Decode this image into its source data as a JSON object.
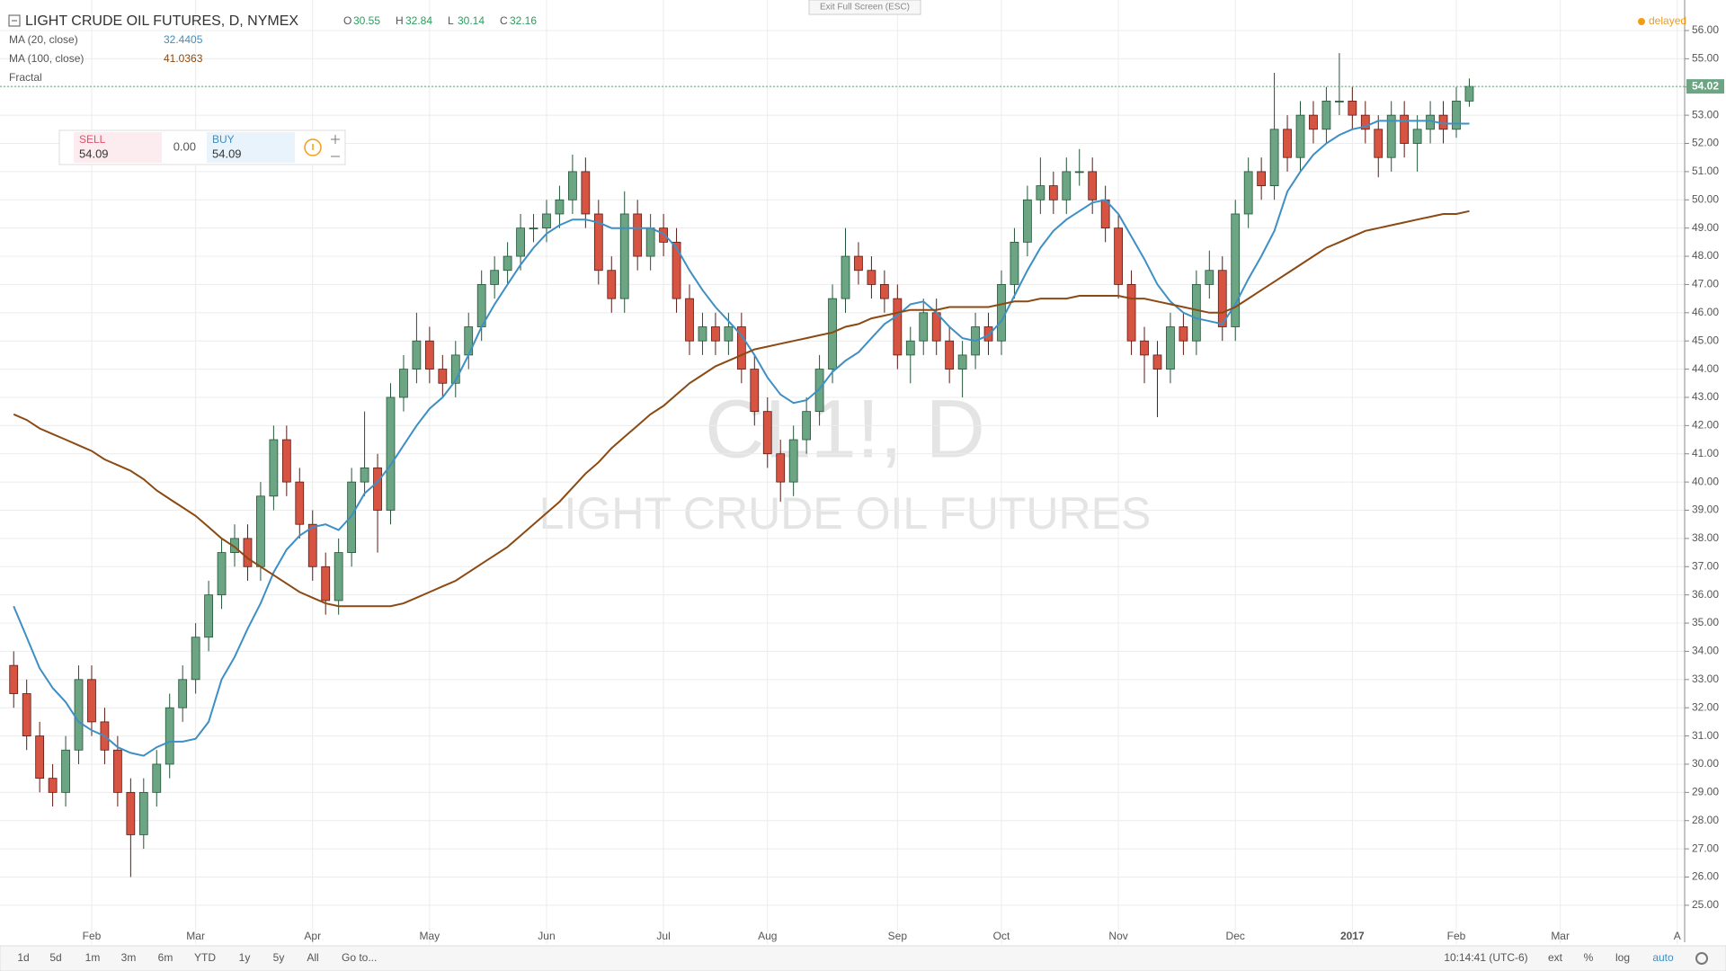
{
  "chart_data": {
    "type": "candlestick",
    "title": "LIGHT CRUDE OIL FUTURES, D, NYMEX",
    "ohlc_legend": [
      {
        "label": "O",
        "value": 30.55
      },
      {
        "label": "H",
        "value": 32.84
      },
      {
        "label": "L",
        "value": 30.14
      },
      {
        "label": "C",
        "value": 32.16
      }
    ],
    "watermark": {
      "symbol": "CL1!, D",
      "name": "LIGHT CRUDE OIL FUTURES"
    },
    "categories": [
      null,
      null,
      null,
      null,
      null,
      null,
      "Feb",
      null,
      null,
      null,
      null,
      null,
      null,
      null,
      "Mar",
      null,
      null,
      null,
      null,
      null,
      null,
      null,
      null,
      "Apr",
      null,
      null,
      null,
      null,
      null,
      null,
      null,
      null,
      "May",
      null,
      null,
      null,
      null,
      null,
      null,
      null,
      null,
      "Jun",
      null,
      null,
      null,
      null,
      null,
      null,
      null,
      null,
      "Jul",
      null,
      null,
      null,
      null,
      null,
      null,
      null,
      "Aug",
      null,
      null,
      null,
      null,
      null,
      null,
      null,
      null,
      null,
      "Sep",
      null,
      null,
      null,
      null,
      null,
      null,
      null,
      "Oct",
      null,
      null,
      null,
      null,
      null,
      null,
      null,
      null,
      "Nov",
      null,
      null,
      null,
      null,
      null,
      null,
      null,
      null,
      "Dec",
      null,
      null,
      null,
      null,
      null,
      null,
      null,
      null,
      "2017",
      null,
      null,
      null,
      null,
      null,
      null,
      null,
      "Feb",
      null,
      null,
      null,
      null,
      null,
      null,
      null,
      "Mar",
      null,
      null,
      null,
      null,
      null,
      null,
      null,
      null,
      "A"
    ],
    "open": [
      33.5,
      32.5,
      31,
      29.5,
      29,
      30.5,
      33,
      31.5,
      30.5,
      29,
      27.5,
      29,
      30,
      32,
      33,
      34.5,
      36,
      37.5,
      38,
      37,
      39.5,
      41.5,
      40,
      38.5,
      37,
      35.8,
      37.5,
      40,
      40.5,
      39,
      43,
      44,
      45,
      44,
      43.5,
      44.5,
      45.5,
      47,
      47.5,
      48,
      49,
      49,
      49.5,
      50,
      51,
      49.5,
      47.5,
      46.5,
      49.5,
      48,
      49,
      48.5,
      46.5,
      45,
      45.5,
      45,
      45.5,
      44,
      42.5,
      41,
      40,
      41.5,
      42.5,
      44,
      46.5,
      48,
      47.5,
      47,
      46.5,
      44.5,
      45,
      46,
      45,
      44,
      44.5,
      45.5,
      45,
      47,
      48.5,
      50,
      50.5,
      50,
      51,
      51,
      50,
      49,
      47,
      45,
      44.5,
      44,
      45.5,
      45,
      47,
      47.5,
      45.5,
      49.5,
      51,
      50.5,
      52.5,
      51.5,
      53,
      52.5,
      53.5,
      53.5,
      53,
      52.5,
      51.5,
      53,
      52,
      52.5,
      53,
      52.5,
      53.5,
      null,
      null,
      null,
      null,
      null,
      null,
      null,
      null,
      null,
      null,
      null,
      null,
      null,
      null,
      null,
      null
    ],
    "high": [
      34,
      33,
      31.5,
      30,
      31,
      33.5,
      33.5,
      32,
      31,
      29.5,
      29.5,
      30.5,
      32.5,
      33.5,
      35,
      36.5,
      38,
      38.5,
      38.5,
      40,
      42,
      42,
      40.5,
      39,
      37.5,
      38,
      40.5,
      42.5,
      41,
      43.5,
      44.5,
      46,
      45.5,
      44.5,
      45,
      46,
      47.5,
      48,
      48.5,
      49.5,
      49.5,
      50,
      50.5,
      51.6,
      51.5,
      50,
      48,
      50.3,
      50,
      49.5,
      49.5,
      49,
      47,
      46,
      46,
      46,
      46,
      44.5,
      43,
      41.5,
      42,
      43,
      44.5,
      47,
      49,
      48.5,
      48,
      47.5,
      47,
      45.5,
      46.5,
      46.5,
      45.5,
      45,
      46,
      46,
      47.5,
      49,
      50.5,
      51.5,
      51,
      51.5,
      51.8,
      51.5,
      50.5,
      49.5,
      47.5,
      45.5,
      45,
      46,
      46,
      47.5,
      48.2,
      48,
      50,
      51.5,
      51.5,
      54.5,
      53,
      53.5,
      53.5,
      54,
      55.2,
      54,
      53.5,
      53,
      53.5,
      53.5,
      53,
      53.5,
      53.5,
      54,
      54.3,
      null,
      null,
      null,
      null,
      null,
      null,
      null,
      null,
      null,
      null,
      null,
      null,
      null,
      null,
      null,
      null
    ],
    "low": [
      32,
      30.5,
      29,
      28.5,
      28.5,
      30,
      31,
      30,
      28.5,
      26,
      27,
      28.5,
      29.5,
      31.5,
      32.5,
      34,
      35.5,
      37,
      36.5,
      36.5,
      39,
      39.5,
      38,
      36.5,
      35.3,
      35.3,
      37,
      39.5,
      37.5,
      38.5,
      42.5,
      43.5,
      43.5,
      43,
      43,
      44,
      45,
      46.5,
      47,
      47.5,
      48.5,
      48.5,
      49,
      49.5,
      49,
      47,
      46,
      46,
      47.5,
      47.5,
      48,
      46,
      44.5,
      44.5,
      44.5,
      44.5,
      43.5,
      42,
      40.5,
      39.3,
      39.5,
      41,
      42,
      43.5,
      46,
      47,
      46.5,
      46,
      44,
      43.5,
      44.5,
      44.5,
      43.5,
      43,
      44,
      44.5,
      44.5,
      46.5,
      48,
      49.5,
      49.5,
      49.5,
      50.5,
      49.5,
      48.5,
      46.5,
      44.5,
      43.5,
      42.3,
      43.5,
      44.5,
      44.5,
      46.5,
      45,
      45,
      49,
      50,
      50,
      51,
      51,
      52,
      52,
      53,
      52.5,
      52,
      50.8,
      51,
      51.5,
      51,
      52,
      52,
      52.2,
      53.3,
      null,
      null,
      null,
      null,
      null,
      null,
      null,
      null,
      null,
      null,
      null,
      null,
      null,
      null,
      null,
      null
    ],
    "close": [
      32.5,
      31,
      29.5,
      29,
      30.5,
      33,
      31.5,
      30.5,
      29,
      27.5,
      29,
      30,
      32,
      33,
      34.5,
      36,
      37.5,
      38,
      37,
      39.5,
      41.5,
      40,
      38.5,
      37,
      35.8,
      37.5,
      40,
      40.5,
      39,
      43,
      44,
      45,
      44,
      43.5,
      44.5,
      45.5,
      47,
      47.5,
      48,
      49,
      49,
      49.5,
      50,
      51,
      49.5,
      47.5,
      46.5,
      49.5,
      48,
      49,
      48.5,
      46.5,
      45,
      45.5,
      45,
      45.5,
      44,
      42.5,
      41,
      40,
      41.5,
      42.5,
      44,
      46.5,
      48,
      47.5,
      47,
      46.5,
      44.5,
      45,
      46,
      45,
      44,
      44.5,
      45.5,
      45,
      47,
      48.5,
      50,
      50.5,
      50,
      51,
      51,
      50,
      49,
      47,
      45,
      44.5,
      44,
      45.5,
      45,
      47,
      47.5,
      45.5,
      49.5,
      51,
      50.5,
      52.5,
      51.5,
      53,
      52.5,
      53.5,
      53.5,
      53,
      52.5,
      51.5,
      53,
      52,
      52.5,
      53,
      52.5,
      53.5,
      54.02,
      null,
      null,
      null,
      null,
      null,
      null,
      null,
      null,
      null,
      null,
      null,
      null,
      null,
      null,
      null,
      null
    ],
    "up_color": "#6ba583",
    "down_color": "#d75442",
    "up_wick": "#225437",
    "down_wick": "#5b1a13",
    "series": [
      {
        "name": "MA (20, close)",
        "color": "#3d8fc4",
        "last_value": 32.4405,
        "values": [
          35.6,
          34.5,
          33.4,
          32.7,
          32.2,
          31.5,
          31.2,
          31,
          30.6,
          30.4,
          30.3,
          30.6,
          30.8,
          30.8,
          30.9,
          31.5,
          33,
          33.8,
          34.8,
          35.7,
          36.8,
          37.6,
          38.1,
          38.4,
          38.5,
          38.3,
          38.8,
          39.6,
          40,
          40.6,
          41.3,
          42,
          42.6,
          43,
          43.6,
          44.5,
          45.5,
          46.3,
          47,
          47.7,
          48.3,
          48.8,
          49.1,
          49.3,
          49.3,
          49.2,
          49,
          49,
          49,
          49,
          48.8,
          48.3,
          47.5,
          46.8,
          46.2,
          45.7,
          45.2,
          44.5,
          43.7,
          43.1,
          42.8,
          42.9,
          43.3,
          43.9,
          44.3,
          44.6,
          45.1,
          45.6,
          45.9,
          46.3,
          46.4,
          46,
          45.5,
          45.1,
          45,
          45.2,
          45.7,
          46.6,
          47.5,
          48.3,
          48.9,
          49.3,
          49.6,
          49.9,
          50,
          49.5,
          48.7,
          47.9,
          47,
          46.4,
          46,
          45.8,
          45.7,
          45.6,
          46.3,
          47.2,
          48,
          48.9,
          50.3,
          51,
          51.6,
          52,
          52.3,
          52.5,
          52.6,
          52.8,
          52.8,
          52.8,
          52.8,
          52.8,
          52.7,
          52.7,
          52.7,
          null,
          null,
          null,
          null,
          null,
          null,
          null,
          null,
          null,
          null,
          null,
          null,
          null,
          null,
          null,
          null
        ]
      },
      {
        "name": "MA (100, close)",
        "color": "#8b4a13",
        "last_value": 41.0363,
        "values": [
          42.4,
          42.2,
          41.9,
          41.7,
          41.5,
          41.3,
          41.1,
          40.8,
          40.6,
          40.4,
          40.1,
          39.7,
          39.4,
          39.1,
          38.8,
          38.4,
          38,
          37.7,
          37.3,
          37,
          36.7,
          36.4,
          36.1,
          35.9,
          35.7,
          35.6,
          35.6,
          35.6,
          35.6,
          35.6,
          35.7,
          35.9,
          36.1,
          36.3,
          36.5,
          36.8,
          37.1,
          37.4,
          37.7,
          38.1,
          38.5,
          38.9,
          39.3,
          39.8,
          40.3,
          40.7,
          41.2,
          41.6,
          42,
          42.4,
          42.7,
          43.1,
          43.5,
          43.8,
          44.1,
          44.3,
          44.5,
          44.7,
          44.8,
          44.9,
          45,
          45.1,
          45.2,
          45.3,
          45.5,
          45.6,
          45.8,
          45.9,
          46,
          46.1,
          46.1,
          46.1,
          46.2,
          46.2,
          46.2,
          46.2,
          46.3,
          46.4,
          46.4,
          46.5,
          46.5,
          46.5,
          46.6,
          46.6,
          46.6,
          46.6,
          46.5,
          46.5,
          46.4,
          46.3,
          46.2,
          46.1,
          46,
          46,
          46.2,
          46.5,
          46.8,
          47.1,
          47.4,
          47.7,
          48,
          48.3,
          48.5,
          48.7,
          48.9,
          49,
          49.1,
          49.2,
          49.3,
          49.4,
          49.5,
          49.5,
          49.6,
          null,
          null,
          null,
          null,
          null,
          null,
          null,
          null,
          null,
          null,
          null,
          null,
          null,
          null,
          null,
          null
        ]
      }
    ],
    "fractal_label": "Fractal",
    "last_price": {
      "value": 54.02,
      "label": "54.02"
    },
    "ylim": [
      24.2,
      56.7
    ],
    "yticks": [
      {
        "value": 25,
        "label": "25.00"
      },
      {
        "value": 26,
        "label": "26.00"
      },
      {
        "value": 27,
        "label": "27.00"
      },
      {
        "value": 28,
        "label": "28.00"
      },
      {
        "value": 29,
        "label": "29.00"
      },
      {
        "value": 30,
        "label": "30.00"
      },
      {
        "value": 31,
        "label": "31.00"
      },
      {
        "value": 32,
        "label": "32.00"
      },
      {
        "value": 33,
        "label": "33.00"
      },
      {
        "value": 34,
        "label": "34.00"
      },
      {
        "value": 35,
        "label": "35.00"
      },
      {
        "value": 36,
        "label": "36.00"
      },
      {
        "value": 37,
        "label": "37.00"
      },
      {
        "value": 38,
        "label": "38.00"
      },
      {
        "value": 39,
        "label": "39.00"
      },
      {
        "value": 40,
        "label": "40.00"
      },
      {
        "value": 41,
        "label": "41.00"
      },
      {
        "value": 42,
        "label": "42.00"
      },
      {
        "value": 43,
        "label": "43.00"
      },
      {
        "value": 44,
        "label": "44.00"
      },
      {
        "value": 45,
        "label": "45.00"
      },
      {
        "value": 46,
        "label": "46.00"
      },
      {
        "value": 47,
        "label": "47.00"
      },
      {
        "value": 48,
        "label": "48.00"
      },
      {
        "value": 49,
        "label": "49.00"
      },
      {
        "value": 50,
        "label": "50.00"
      },
      {
        "value": 51,
        "label": "51.00"
      },
      {
        "value": 52,
        "label": "52.00"
      },
      {
        "value": 53,
        "label": "53.00"
      },
      {
        "value": 54,
        "label": "54.00"
      },
      {
        "value": 55,
        "label": "55.00"
      },
      {
        "value": 56,
        "label": "56.00"
      }
    ],
    "grid": true
  },
  "ui": {
    "exit_fullscreen": "Exit Full Screen (ESC)",
    "status": "delayed",
    "trade": {
      "sell_label": "SELL",
      "sell_price": 54.09,
      "spread": {
        "value": 0,
        "label": "0.00"
      },
      "buy_label": "BUY",
      "buy_price": 54.09
    },
    "toolbar": {
      "ranges": [
        "1d",
        "5d",
        "1m",
        "3m",
        "6m",
        "YTD",
        "1y",
        "5y",
        "All"
      ],
      "goto": "Go to...",
      "time": "10:14:41 (UTC-6)",
      "options": [
        "ext",
        "%",
        "log",
        "auto"
      ]
    }
  }
}
